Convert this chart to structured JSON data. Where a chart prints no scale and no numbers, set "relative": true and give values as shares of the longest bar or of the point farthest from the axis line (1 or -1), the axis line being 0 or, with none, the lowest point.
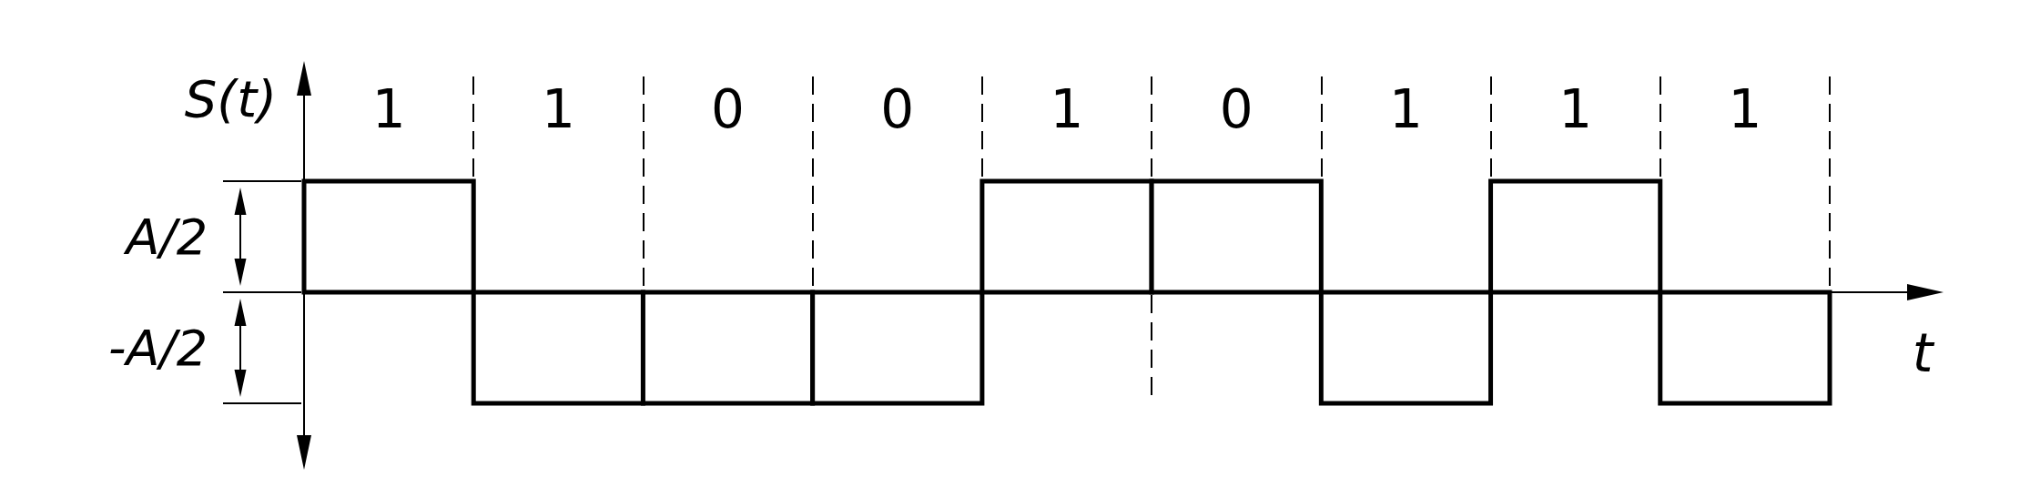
{
  "chart_data": {
    "type": "bar",
    "relative": true,
    "categories": [
      "1",
      "1",
      "0",
      "0",
      "1",
      "0",
      "1",
      "1",
      "1"
    ],
    "values": [
      1,
      -1,
      -1,
      -1,
      1,
      1,
      -1,
      1,
      -1
    ],
    "color": "#000000",
    "xlabel": "t",
    "ylabel": "S(t)",
    "annotations": [
      "A/2",
      "-A/2"
    ],
    "grid": "x"
  }
}
